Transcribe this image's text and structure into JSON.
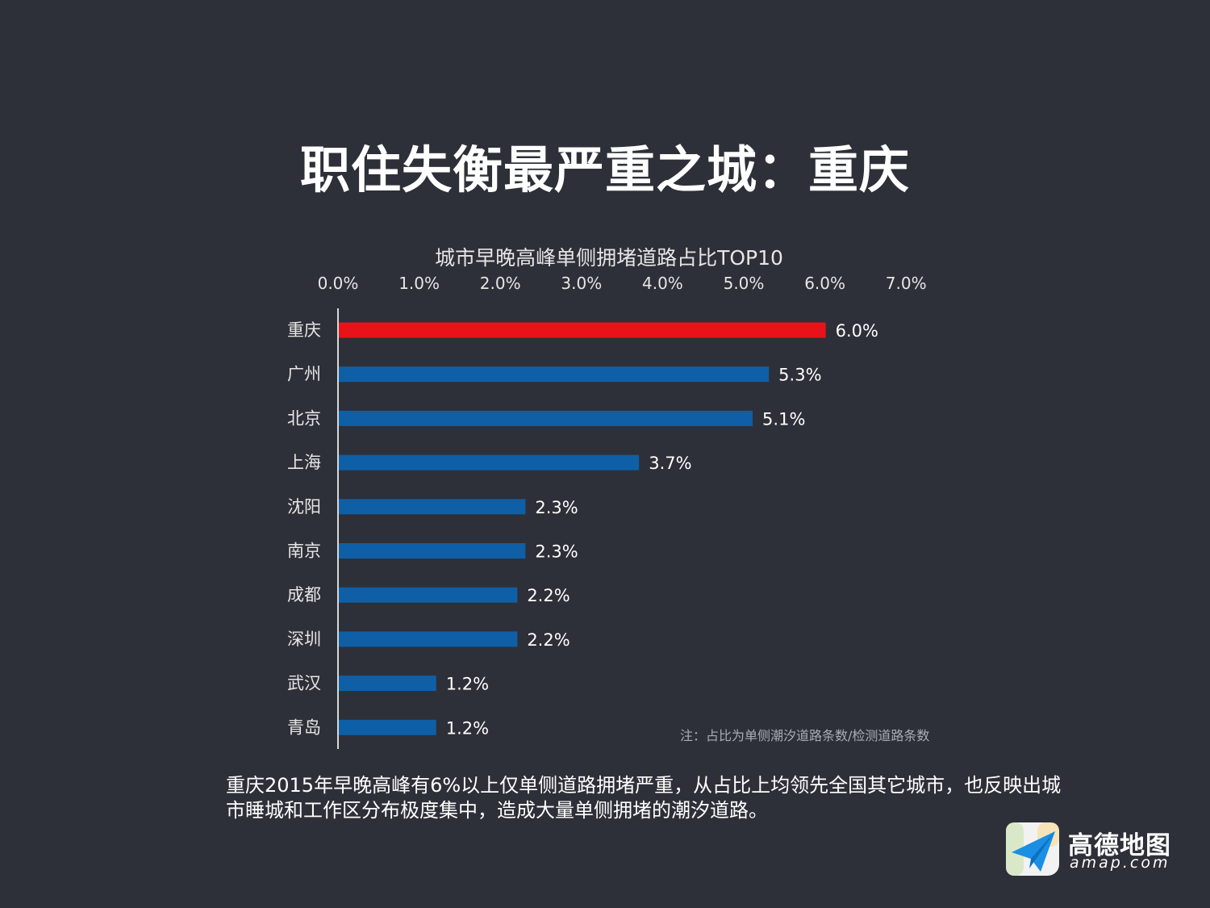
{
  "page_title": "职住失衡最严重之城：重庆",
  "chart_data": {
    "type": "bar",
    "orientation": "horizontal",
    "title": "城市早晚高峰单侧拥堵道路占比TOP10",
    "categories": [
      "重庆",
      "广州",
      "北京",
      "上海",
      "沈阳",
      "南京",
      "成都",
      "深圳",
      "武汉",
      "青岛"
    ],
    "values": [
      6.0,
      5.3,
      5.1,
      3.7,
      2.3,
      2.3,
      2.2,
      2.2,
      1.2,
      1.2
    ],
    "value_labels": [
      "6.0%",
      "5.3%",
      "5.1%",
      "3.7%",
      "2.3%",
      "2.3%",
      "2.2%",
      "2.2%",
      "1.2%",
      "1.2%"
    ],
    "xlim": [
      0,
      7
    ],
    "x_ticks": [
      "0.0%",
      "1.0%",
      "2.0%",
      "3.0%",
      "4.0%",
      "5.0%",
      "6.0%",
      "7.0%"
    ],
    "axis_position": "top",
    "grid": false,
    "highlight_index": 0,
    "colors": {
      "highlight": "#e8131a",
      "bar": "#0e5fa6",
      "axis": "#d9d9d9"
    }
  },
  "footnote": "注：占比为单侧潮汐道路条数/检测道路条数",
  "summary_lines": [
    "重庆2015年早晚高峰有6%以上仅单侧道路拥堵严重，从占比上均领先全国其它城市，也反映出城",
    "市睡城和工作区分布极度集中，造成大量单侧拥堵的潮汐道路。"
  ],
  "logo": {
    "name": "高德地图",
    "domain": "amap.com",
    "icon": "paper-plane-icon",
    "color": "#1a8fe3"
  }
}
